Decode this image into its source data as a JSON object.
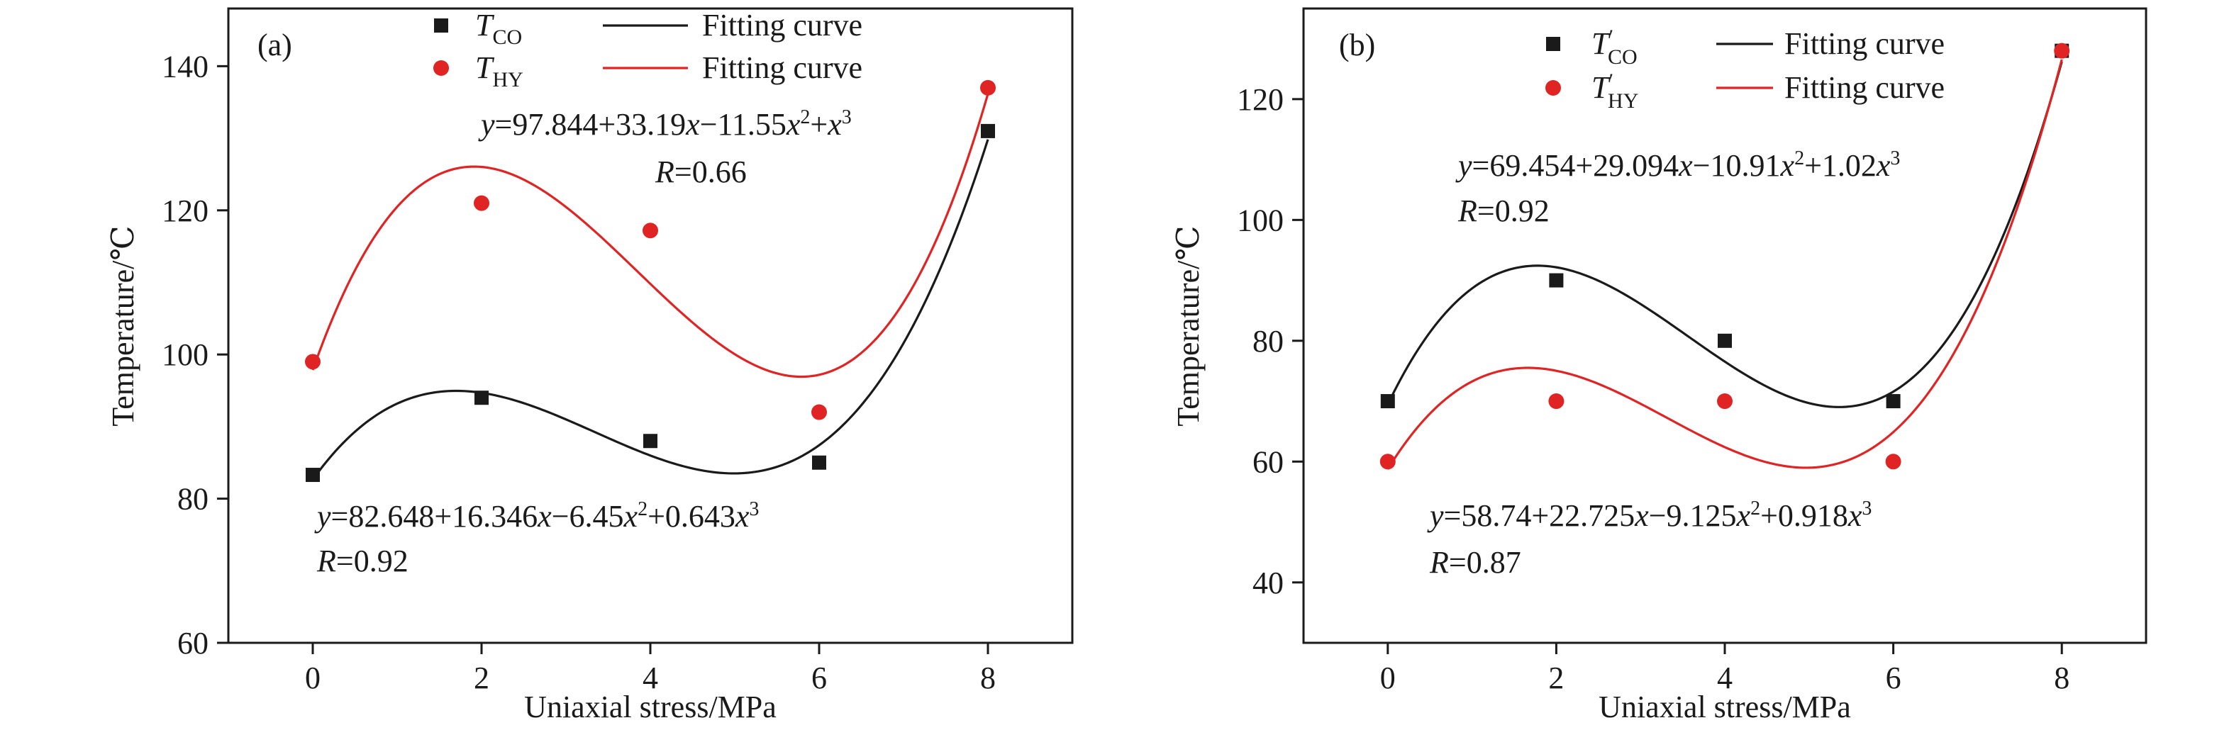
{
  "chart_data": [
    {
      "type": "scatter",
      "panel_label": "(a)",
      "xlabel": "Uniaxial stress/MPa",
      "ylabel": "Temperature/℃",
      "xlim": [
        -1,
        9
      ],
      "ylim": [
        60,
        148
      ],
      "xticks": [
        0,
        2,
        4,
        6,
        8
      ],
      "yticks": [
        60,
        80,
        100,
        120,
        140
      ],
      "legend": {
        "position": "top-center",
        "entries": [
          {
            "marker": "square",
            "symbol": "T",
            "subscript": "CO",
            "prime": false,
            "line_label": "Fitting curve",
            "color": "#1a1a1a"
          },
          {
            "marker": "circle",
            "symbol": "T",
            "subscript": "HY",
            "prime": false,
            "line_label": "Fitting curve",
            "color": "#e02424"
          }
        ]
      },
      "series": [
        {
          "marker": "square",
          "color": "#1a1a1a",
          "x": [
            0,
            2,
            4,
            6,
            8
          ],
          "y": [
            83.3,
            94,
            88,
            85,
            131
          ],
          "fit": {
            "c0": 82.648,
            "c1": 16.346,
            "c2": -6.45,
            "c3": 0.643
          },
          "equation": {
            "y": "y",
            "const": "=82.648+16.346",
            "x1": "x",
            "t2": "−6.45",
            "x2": "x",
            "s2": "2",
            "t3": "+0.643",
            "x3": "x",
            "s3": "3"
          },
          "r_label": "R",
          "r_value": "=0.92"
        },
        {
          "marker": "circle",
          "color": "#e02424",
          "x": [
            0,
            2,
            4,
            6,
            8
          ],
          "y": [
            99,
            121,
            117.2,
            92,
            137
          ],
          "fit": {
            "c0": 97.844,
            "c1": 33.19,
            "c2": -11.55,
            "c3": 1.0
          },
          "equation": {
            "y": "y",
            "const": "=97.844+33.19",
            "x1": "x",
            "t2": "−11.55",
            "x2": "x",
            "s2": "2",
            "t3": "+",
            "x3": "x",
            "s3": "3"
          },
          "r_label": "R",
          "r_value": "=0.66"
        }
      ]
    },
    {
      "type": "scatter",
      "panel_label": "(b)",
      "xlabel": "Uniaxial stress/MPa",
      "ylabel": "Temperature/℃",
      "xlim": [
        -1,
        9
      ],
      "ylim": [
        30,
        135
      ],
      "xticks": [
        0,
        2,
        4,
        6,
        8
      ],
      "yticks": [
        40,
        60,
        80,
        100,
        120
      ],
      "legend": {
        "position": "top-center",
        "entries": [
          {
            "marker": "square",
            "symbol": "T",
            "subscript": "CO",
            "prime": true,
            "line_label": "Fitting curve",
            "color": "#1a1a1a"
          },
          {
            "marker": "circle",
            "symbol": "T",
            "subscript": "HY",
            "prime": true,
            "line_label": "Fitting curve",
            "color": "#e02424"
          }
        ]
      },
      "series": [
        {
          "marker": "square",
          "color": "#1a1a1a",
          "x": [
            0,
            2,
            4,
            6,
            8
          ],
          "y": [
            70,
            90,
            80,
            70,
            128
          ],
          "fit": {
            "c0": 69.454,
            "c1": 29.094,
            "c2": -10.91,
            "c3": 1.02
          },
          "equation": {
            "y": "y",
            "const": "=69.454+29.094",
            "x1": "x",
            "t2": "−10.91",
            "x2": "x",
            "s2": "2",
            "t3": "+1.02",
            "x3": "x",
            "s3": "3"
          },
          "r_label": "R",
          "r_value": "=0.92"
        },
        {
          "marker": "circle",
          "color": "#e02424",
          "x": [
            0,
            2,
            4,
            6,
            8
          ],
          "y": [
            60,
            70,
            70,
            60,
            128
          ],
          "fit": {
            "c0": 58.74,
            "c1": 22.725,
            "c2": -9.125,
            "c3": 0.918
          },
          "equation": {
            "y": "y",
            "const": "=58.74+22.725",
            "x1": "x",
            "t2": "−9.125",
            "x2": "x",
            "s2": "2",
            "t3": "+0.918",
            "x3": "x",
            "s3": "3"
          },
          "r_label": "R",
          "r_value": "=0.87"
        }
      ]
    }
  ]
}
